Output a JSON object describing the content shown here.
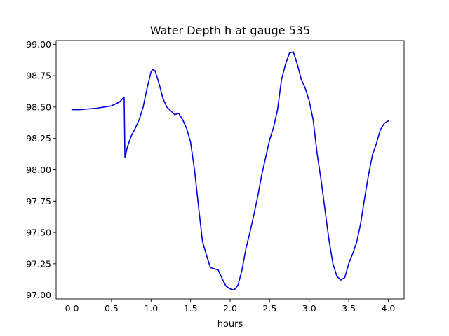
{
  "chart_data": {
    "type": "line",
    "title": "Water Depth h at gauge 535",
    "xlabel": "hours",
    "ylabel": "",
    "xlim": [
      -0.2,
      4.2
    ],
    "ylim": [
      96.97,
      99.03
    ],
    "xticks": [
      0.0,
      0.5,
      1.0,
      1.5,
      2.0,
      2.5,
      3.0,
      3.5,
      4.0
    ],
    "yticks": [
      97.0,
      97.25,
      97.5,
      97.75,
      98.0,
      98.25,
      98.5,
      98.75,
      99.0
    ],
    "xtick_labels": [
      "0.0",
      "0.5",
      "1.0",
      "1.5",
      "2.0",
      "2.5",
      "3.0",
      "3.5",
      "4.0"
    ],
    "ytick_labels": [
      "97.00",
      "97.25",
      "97.50",
      "97.75",
      "98.00",
      "98.25",
      "98.50",
      "98.75",
      "99.00"
    ],
    "grid": false,
    "series": [
      {
        "color": "#0000dd",
        "x": [
          0.0,
          0.1,
          0.2,
          0.3,
          0.4,
          0.5,
          0.6,
          0.66,
          0.67,
          0.68,
          0.7,
          0.75,
          0.8,
          0.85,
          0.9,
          0.95,
          1.0,
          1.02,
          1.05,
          1.1,
          1.15,
          1.2,
          1.25,
          1.3,
          1.35,
          1.4,
          1.45,
          1.5,
          1.55,
          1.6,
          1.65,
          1.7,
          1.75,
          1.8,
          1.85,
          1.9,
          1.95,
          2.0,
          2.05,
          2.1,
          2.15,
          2.2,
          2.25,
          2.3,
          2.35,
          2.4,
          2.45,
          2.5,
          2.55,
          2.6,
          2.65,
          2.7,
          2.75,
          2.8,
          2.85,
          2.9,
          2.95,
          3.0,
          3.05,
          3.1,
          3.15,
          3.2,
          3.25,
          3.3,
          3.35,
          3.4,
          3.45,
          3.5,
          3.55,
          3.6,
          3.65,
          3.7,
          3.75,
          3.8,
          3.85,
          3.9,
          3.95,
          4.0
        ],
        "y": [
          98.48,
          98.48,
          98.485,
          98.49,
          98.5,
          98.51,
          98.54,
          98.58,
          98.1,
          98.12,
          98.18,
          98.27,
          98.33,
          98.4,
          98.5,
          98.65,
          98.78,
          98.8,
          98.79,
          98.69,
          98.57,
          98.5,
          98.47,
          98.44,
          98.45,
          98.4,
          98.33,
          98.22,
          98.0,
          97.71,
          97.43,
          97.32,
          97.22,
          97.21,
          97.2,
          97.13,
          97.07,
          97.05,
          97.04,
          97.08,
          97.2,
          97.37,
          97.5,
          97.64,
          97.79,
          97.96,
          98.1,
          98.24,
          98.34,
          98.48,
          98.72,
          98.84,
          98.93,
          98.94,
          98.84,
          98.72,
          98.65,
          98.55,
          98.4,
          98.13,
          97.92,
          97.68,
          97.44,
          97.25,
          97.15,
          97.12,
          97.14,
          97.25,
          97.33,
          97.42,
          97.57,
          97.77,
          97.96,
          98.12,
          98.21,
          98.32,
          98.37,
          98.39
        ]
      }
    ]
  }
}
